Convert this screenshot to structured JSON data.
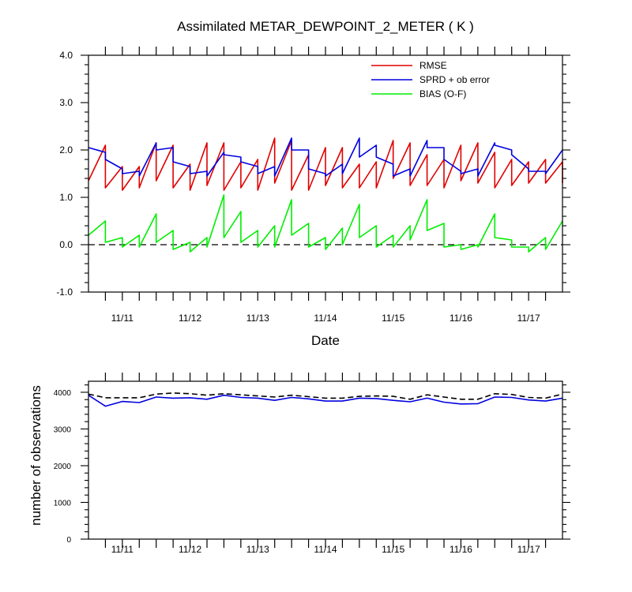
{
  "chart_data": [
    {
      "type": "line",
      "title": "Assimilated METAR_DEWPOINT_2_METER ( K )",
      "xlabel": "Date",
      "ylabel": "",
      "x_tick_labels": [
        "11/11",
        "11/12",
        "11/13",
        "11/14",
        "11/15",
        "11/16",
        "11/17"
      ],
      "x_tick_positions": [
        0.5,
        1.5,
        2.5,
        3.5,
        4.5,
        5.5,
        6.5
      ],
      "xlim": [
        0,
        7.0
      ],
      "ylim": [
        -1.0,
        4.0
      ],
      "y_tick_labels": [
        "-1.0",
        "0.0",
        "1.0",
        "2.0",
        "3.0",
        "4.0"
      ],
      "y_ticks": [
        -1.0,
        0.0,
        1.0,
        2.0,
        3.0,
        4.0
      ],
      "legend_position": "top-right",
      "zero_line": {
        "y": 0.0,
        "style": "dashed",
        "color": "#000000"
      },
      "series": [
        {
          "name": "RMSE",
          "color": "#e00000",
          "x": [
            0,
            0.25,
            0.25,
            0.5,
            0.5,
            0.75,
            0.75,
            1.0,
            1.0,
            1.25,
            1.25,
            1.5,
            1.5,
            1.75,
            1.75,
            2.0,
            2.0,
            2.25,
            2.25,
            2.5,
            2.5,
            2.75,
            2.75,
            3.0,
            3.0,
            3.25,
            3.25,
            3.5,
            3.5,
            3.75,
            3.75,
            4.0,
            4.0,
            4.25,
            4.25,
            4.5,
            4.5,
            4.75,
            4.75,
            5.0,
            5.0,
            5.25,
            5.25,
            5.5,
            5.5,
            5.75,
            5.75,
            6.0,
            6.0,
            6.25,
            6.25,
            6.5,
            6.5,
            6.75,
            6.75,
            7.0,
            7.0
          ],
          "y": [
            1.35,
            2.1,
            1.2,
            1.65,
            1.15,
            1.65,
            1.2,
            2.15,
            1.35,
            2.1,
            1.2,
            1.7,
            1.15,
            2.15,
            1.25,
            2.15,
            1.15,
            1.75,
            1.2,
            1.8,
            1.15,
            2.25,
            1.3,
            2.2,
            1.15,
            1.9,
            1.15,
            2.05,
            1.25,
            2.05,
            1.2,
            1.7,
            1.2,
            1.75,
            1.2,
            2.2,
            1.4,
            2.15,
            1.25,
            1.9,
            1.25,
            1.8,
            1.2,
            2.1,
            1.35,
            2.15,
            1.3,
            1.95,
            1.2,
            1.8,
            1.25,
            1.75,
            1.3,
            1.8,
            1.3,
            1.75,
            1.3
          ]
        },
        {
          "name": "SPRD + ob error",
          "color": "#0000e0",
          "x": [
            0,
            0.25,
            0.25,
            0.5,
            0.5,
            0.75,
            0.75,
            1.0,
            1.0,
            1.25,
            1.25,
            1.5,
            1.5,
            1.75,
            1.75,
            2.0,
            2.0,
            2.25,
            2.25,
            2.5,
            2.5,
            2.75,
            2.75,
            3.0,
            3.0,
            3.25,
            3.25,
            3.5,
            3.5,
            3.75,
            3.75,
            4.0,
            4.0,
            4.25,
            4.25,
            4.5,
            4.5,
            4.75,
            4.75,
            5.0,
            5.0,
            5.25,
            5.25,
            5.5,
            5.5,
            5.75,
            5.75,
            6.0,
            6.0,
            6.25,
            6.25,
            6.5,
            6.5,
            6.75,
            6.75,
            7.0,
            7.0
          ],
          "y": [
            2.05,
            1.95,
            1.8,
            1.6,
            1.5,
            1.55,
            1.45,
            2.15,
            2.0,
            2.05,
            1.75,
            1.65,
            1.5,
            1.55,
            1.45,
            1.95,
            1.9,
            1.85,
            1.75,
            1.65,
            1.5,
            1.65,
            1.45,
            2.25,
            2.0,
            2.0,
            1.6,
            1.5,
            1.45,
            1.7,
            1.5,
            2.25,
            1.85,
            2.1,
            1.85,
            1.7,
            1.45,
            1.6,
            1.45,
            2.2,
            2.05,
            2.05,
            1.8,
            1.55,
            1.5,
            1.6,
            1.45,
            2.15,
            2.1,
            2.0,
            1.9,
            1.6,
            1.55,
            1.55,
            1.5,
            2.0,
            2.0
          ]
        },
        {
          "name": "BIAS (O-F)",
          "color": "#00ee00",
          "x": [
            0,
            0.25,
            0.25,
            0.5,
            0.5,
            0.75,
            0.75,
            1.0,
            1.0,
            1.25,
            1.25,
            1.5,
            1.5,
            1.75,
            1.75,
            2.0,
            2.0,
            2.25,
            2.25,
            2.5,
            2.5,
            2.75,
            2.75,
            3.0,
            3.0,
            3.25,
            3.25,
            3.5,
            3.5,
            3.75,
            3.75,
            4.0,
            4.0,
            4.25,
            4.25,
            4.5,
            4.5,
            4.75,
            4.75,
            5.0,
            5.0,
            5.25,
            5.25,
            5.5,
            5.5,
            5.75,
            5.75,
            6.0,
            6.0,
            6.25,
            6.25,
            6.5,
            6.5,
            6.75,
            6.75,
            7.0,
            7.0
          ],
          "y": [
            0.2,
            0.5,
            0.05,
            0.15,
            -0.05,
            0.2,
            -0.05,
            0.65,
            0.05,
            0.3,
            -0.1,
            0.05,
            -0.15,
            0.15,
            -0.05,
            1.05,
            0.15,
            0.7,
            0.05,
            0.3,
            -0.05,
            0.4,
            -0.05,
            0.95,
            0.2,
            0.45,
            -0.05,
            0.15,
            -0.1,
            0.35,
            0.0,
            0.85,
            0.15,
            0.4,
            -0.05,
            0.2,
            -0.05,
            0.4,
            0.1,
            0.95,
            0.3,
            0.45,
            -0.05,
            0.0,
            -0.1,
            0.0,
            -0.05,
            0.65,
            0.15,
            0.1,
            -0.05,
            -0.05,
            -0.15,
            0.15,
            -0.1,
            0.5,
            0.5
          ]
        }
      ]
    },
    {
      "type": "line",
      "title": "",
      "xlabel": "",
      "ylabel": "number of observations",
      "x_tick_labels": [
        "11/11",
        "11/12",
        "11/13",
        "11/14",
        "11/15",
        "11/16",
        "11/17"
      ],
      "x_tick_positions": [
        0.5,
        1.5,
        2.5,
        3.5,
        4.5,
        5.5,
        6.5
      ],
      "xlim": [
        0,
        7.0
      ],
      "ylim": [
        0,
        4300
      ],
      "y_tick_labels": [
        "0",
        "1000",
        "2000",
        "3000",
        "4000"
      ],
      "y_ticks": [
        0,
        1000,
        2000,
        3000,
        4000
      ],
      "series": [
        {
          "name": "",
          "style": "dashed",
          "color": "#000000",
          "x": [
            0,
            0.25,
            0.5,
            0.75,
            1.0,
            1.25,
            1.5,
            1.75,
            2.0,
            2.25,
            2.5,
            2.75,
            3.0,
            3.25,
            3.5,
            3.75,
            4.0,
            4.25,
            4.5,
            4.75,
            5.0,
            5.25,
            5.5,
            5.75,
            6.0,
            6.25,
            6.5,
            6.75,
            7.0
          ],
          "y": [
            3950,
            3850,
            3850,
            3850,
            3950,
            3980,
            3960,
            3920,
            3960,
            3930,
            3900,
            3870,
            3920,
            3880,
            3840,
            3840,
            3890,
            3900,
            3890,
            3810,
            3930,
            3870,
            3810,
            3810,
            3960,
            3940,
            3860,
            3840,
            3950
          ]
        },
        {
          "name": "",
          "style": "solid",
          "color": "#0000e0",
          "x": [
            0,
            0.25,
            0.5,
            0.75,
            1.0,
            1.25,
            1.5,
            1.75,
            2.0,
            2.25,
            2.5,
            2.75,
            3.0,
            3.25,
            3.5,
            3.75,
            4.0,
            4.25,
            4.5,
            4.75,
            5.0,
            5.25,
            5.5,
            5.75,
            6.0,
            6.25,
            6.5,
            6.75,
            7.0
          ],
          "y": [
            3920,
            3620,
            3750,
            3720,
            3870,
            3840,
            3850,
            3810,
            3920,
            3860,
            3840,
            3780,
            3860,
            3820,
            3760,
            3760,
            3840,
            3830,
            3780,
            3740,
            3840,
            3730,
            3680,
            3690,
            3870,
            3860,
            3790,
            3760,
            3840
          ]
        }
      ]
    }
  ]
}
